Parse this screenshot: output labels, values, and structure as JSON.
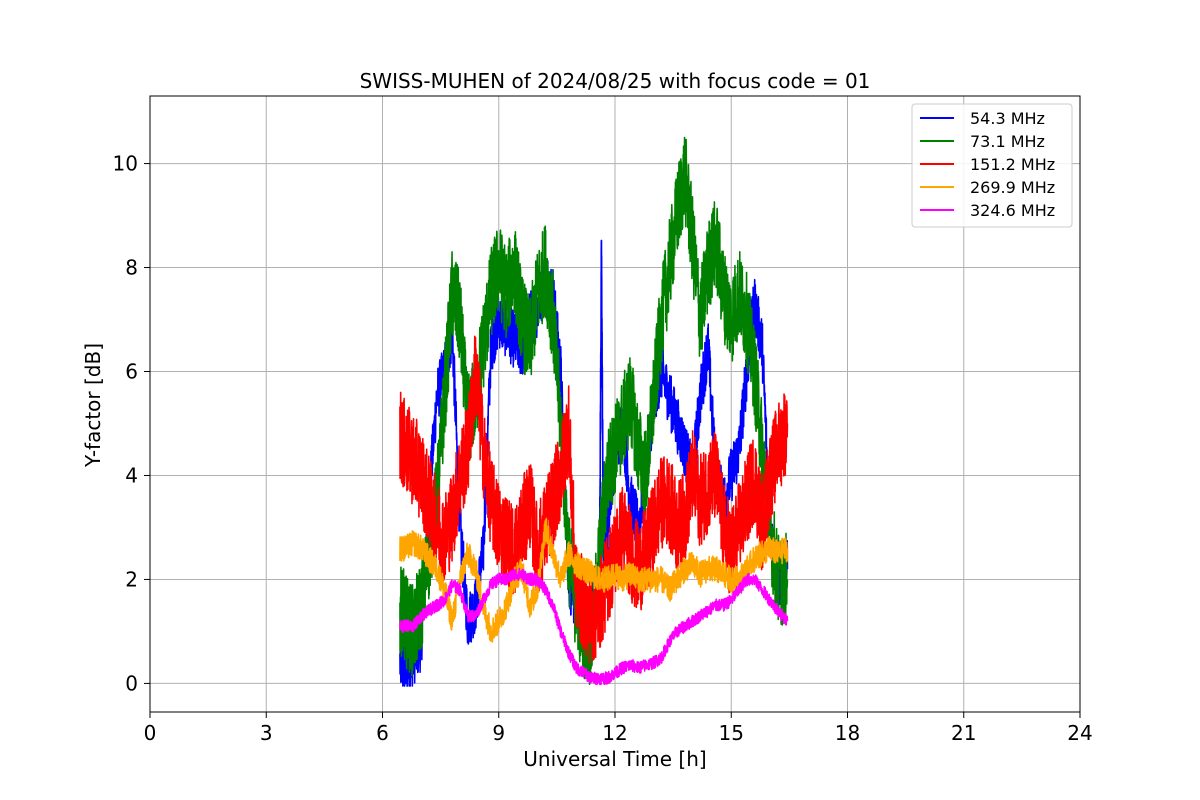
{
  "chart_data": {
    "type": "line",
    "title": "SWISS-MUHEN of 2024/08/25 with focus code = 01",
    "xlabel": "Universal Time [h]",
    "ylabel": "Y-factor [dB]",
    "xlim": [
      0,
      24
    ],
    "ylim": [
      -0.55,
      11.3
    ],
    "xticks": [
      0,
      3,
      6,
      9,
      12,
      15,
      18,
      21,
      24
    ],
    "yticks": [
      0,
      2,
      4,
      6,
      8,
      10
    ],
    "grid": true,
    "legend_position": "top-right",
    "series": [
      {
        "name": " 54.3 MHz",
        "color": "#0000ff",
        "x": [
          6.45,
          6.6,
          6.8,
          7.0,
          7.2,
          7.4,
          7.6,
          7.8,
          8.0,
          8.2,
          8.4,
          8.6,
          8.8,
          9.0,
          9.2,
          9.4,
          9.6,
          9.8,
          10.0,
          10.2,
          10.4,
          10.6,
          10.8,
          11.0,
          11.2,
          11.4,
          11.6,
          11.65,
          11.7,
          11.8,
          12.0,
          12.2,
          12.4,
          12.6,
          12.8,
          13.0,
          13.2,
          13.4,
          13.6,
          13.8,
          14.0,
          14.2,
          14.4,
          14.6,
          14.8,
          15.0,
          15.2,
          15.4,
          15.6,
          15.8,
          16.0,
          16.2,
          16.45
        ],
        "y": [
          0.4,
          0.3,
          0.5,
          0.8,
          3.5,
          5.5,
          6.0,
          6.8,
          3.0,
          1.2,
          1.5,
          2.5,
          6.5,
          7.0,
          6.8,
          6.6,
          6.4,
          7.0,
          7.2,
          7.8,
          7.5,
          6.0,
          2.0,
          1.5,
          1.2,
          1.5,
          2.0,
          8.4,
          2.5,
          3.0,
          4.5,
          5.0,
          3.5,
          3.0,
          4.0,
          5.5,
          6.0,
          5.5,
          5.0,
          4.5,
          4.0,
          5.5,
          6.5,
          4.0,
          3.5,
          4.0,
          4.5,
          6.0,
          7.3,
          6.5,
          3.0,
          2.0,
          2.2
        ]
      },
      {
        "name": " 73.1 MHz",
        "color": "#008000",
        "x": [
          6.45,
          6.6,
          6.8,
          7.0,
          7.2,
          7.4,
          7.6,
          7.8,
          8.0,
          8.2,
          8.4,
          8.6,
          8.8,
          9.0,
          9.2,
          9.4,
          9.6,
          9.8,
          10.0,
          10.2,
          10.4,
          10.6,
          10.8,
          11.0,
          11.2,
          11.4,
          11.6,
          11.8,
          12.0,
          12.2,
          12.4,
          12.6,
          12.8,
          13.0,
          13.2,
          13.4,
          13.6,
          13.8,
          14.0,
          14.2,
          14.4,
          14.6,
          14.8,
          15.0,
          15.2,
          15.4,
          15.6,
          15.8,
          16.0,
          16.2,
          16.45
        ],
        "y": [
          1.5,
          1.2,
          1.0,
          1.5,
          2.5,
          3.5,
          5.5,
          7.5,
          7.0,
          5.0,
          5.5,
          6.5,
          7.5,
          8.0,
          7.5,
          8.0,
          7.0,
          6.5,
          7.5,
          8.0,
          7.0,
          5.0,
          2.5,
          1.5,
          1.0,
          0.8,
          2.5,
          4.0,
          4.5,
          5.0,
          5.5,
          4.5,
          4.0,
          5.5,
          7.0,
          8.0,
          9.0,
          9.8,
          8.5,
          7.0,
          8.0,
          8.5,
          7.5,
          7.0,
          7.5,
          7.0,
          6.0,
          4.5,
          3.0,
          2.0,
          2.0
        ]
      },
      {
        "name": " 151.2 MHz",
        "color": "#ff0000",
        "x": [
          6.45,
          6.6,
          6.8,
          7.0,
          7.2,
          7.4,
          7.6,
          7.8,
          8.0,
          8.2,
          8.4,
          8.6,
          8.8,
          9.0,
          9.2,
          9.4,
          9.6,
          9.8,
          10.0,
          10.2,
          10.4,
          10.6,
          10.8,
          11.0,
          11.2,
          11.4,
          11.6,
          11.8,
          12.0,
          12.2,
          12.4,
          12.6,
          12.8,
          13.0,
          13.2,
          13.4,
          13.6,
          13.8,
          14.0,
          14.2,
          14.4,
          14.6,
          14.8,
          15.0,
          15.2,
          15.4,
          15.6,
          15.8,
          16.0,
          16.2,
          16.45
        ],
        "y": [
          4.8,
          4.5,
          4.3,
          4.0,
          3.5,
          3.0,
          2.8,
          3.2,
          4.0,
          4.5,
          6.0,
          4.5,
          3.5,
          3.0,
          2.8,
          2.5,
          3.0,
          3.5,
          2.5,
          3.0,
          3.5,
          4.0,
          5.0,
          1.8,
          1.5,
          1.2,
          1.5,
          2.0,
          2.5,
          3.0,
          2.5,
          2.2,
          2.5,
          3.0,
          3.5,
          3.5,
          3.0,
          3.2,
          4.0,
          3.5,
          3.8,
          4.0,
          3.0,
          2.5,
          3.0,
          3.5,
          4.0,
          3.0,
          4.0,
          4.5,
          5.0
        ]
      },
      {
        "name": " 269.9 MHz",
        "color": "#ffa500",
        "x": [
          6.45,
          6.6,
          6.8,
          7.0,
          7.2,
          7.4,
          7.6,
          7.8,
          8.0,
          8.2,
          8.4,
          8.6,
          8.8,
          9.0,
          9.2,
          9.4,
          9.6,
          9.8,
          10.0,
          10.2,
          10.4,
          10.6,
          10.8,
          11.0,
          11.2,
          11.4,
          11.6,
          11.8,
          12.0,
          12.2,
          12.4,
          12.6,
          12.8,
          13.0,
          13.2,
          13.4,
          13.6,
          13.8,
          14.0,
          14.2,
          14.4,
          14.6,
          14.8,
          15.0,
          15.2,
          15.4,
          15.6,
          15.8,
          16.0,
          16.2,
          16.45
        ],
        "y": [
          2.6,
          2.6,
          2.7,
          2.6,
          2.4,
          2.2,
          1.8,
          1.2,
          2.0,
          2.5,
          2.2,
          1.5,
          1.0,
          1.2,
          1.5,
          2.0,
          2.2,
          1.5,
          1.8,
          3.0,
          2.5,
          2.0,
          2.5,
          2.3,
          2.2,
          2.1,
          2.0,
          2.0,
          2.1,
          2.0,
          2.1,
          2.0,
          2.0,
          2.0,
          2.0,
          1.8,
          2.0,
          2.2,
          2.3,
          2.1,
          2.2,
          2.2,
          2.1,
          2.0,
          2.0,
          2.2,
          2.4,
          2.5,
          2.6,
          2.5,
          2.6
        ]
      },
      {
        "name": " 324.6 MHz",
        "color": "#ff00ff",
        "x": [
          6.45,
          6.6,
          6.8,
          7.0,
          7.2,
          7.4,
          7.6,
          7.8,
          8.0,
          8.2,
          8.4,
          8.6,
          8.8,
          9.0,
          9.2,
          9.4,
          9.6,
          9.8,
          10.0,
          10.2,
          10.4,
          10.6,
          10.8,
          11.0,
          11.2,
          11.4,
          11.6,
          11.8,
          12.0,
          12.2,
          12.4,
          12.6,
          12.8,
          13.0,
          13.2,
          13.4,
          13.6,
          13.8,
          14.0,
          14.2,
          14.4,
          14.6,
          14.8,
          15.0,
          15.2,
          15.4,
          15.6,
          15.8,
          16.0,
          16.2,
          16.45
        ],
        "y": [
          1.1,
          1.1,
          1.1,
          1.3,
          1.4,
          1.5,
          1.6,
          1.9,
          1.8,
          1.3,
          1.3,
          1.6,
          1.9,
          2.0,
          2.0,
          2.1,
          2.1,
          2.0,
          2.0,
          1.8,
          1.5,
          1.0,
          0.6,
          0.3,
          0.2,
          0.1,
          0.1,
          0.1,
          0.2,
          0.3,
          0.35,
          0.3,
          0.35,
          0.4,
          0.5,
          0.8,
          1.0,
          1.1,
          1.2,
          1.3,
          1.4,
          1.5,
          1.5,
          1.6,
          1.8,
          2.0,
          2.0,
          1.8,
          1.6,
          1.4,
          1.2
        ]
      }
    ]
  }
}
